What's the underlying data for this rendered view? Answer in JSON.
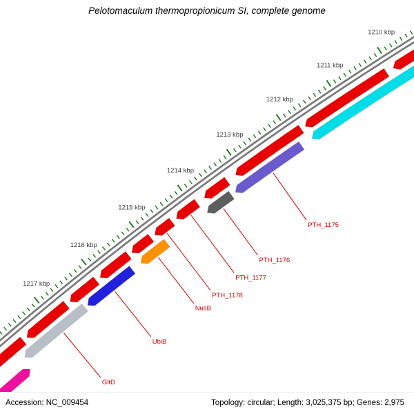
{
  "title": "Pelotomaculum thermopropionicum SI, complete genome",
  "status_bar": {
    "accession": "Accession: NC_009454",
    "summary": "Topology: circular; Length: 3,025,375 bp; Genes: 2,975"
  },
  "map": {
    "unit_suffix": " kbp",
    "tick_positions_kbp": [
      1210,
      1211,
      1212,
      1213,
      1214,
      1215,
      1216,
      1217
    ],
    "minor_tick_step_kbp": 0.1,
    "visible_range_kbp": [
      1209.3,
      1218.2
    ],
    "colors": {
      "backbone": "#7b7b7b",
      "tick": "#1e7d1e",
      "scale_text": "#3c3c3c",
      "label": "#cc0000",
      "red": "#e90000",
      "cyan": "#00dce8",
      "purple": "#6a5acd",
      "darkgray": "#5e5e5e",
      "orange": "#ff9000",
      "blue": "#2121dd",
      "silver": "#b9bfc7",
      "magenta": "#ee10a0"
    },
    "genes": [
      {
        "name": "",
        "color": "red",
        "lane": "lane1",
        "start": 1208.55,
        "end": 1209.97,
        "dir": 1
      },
      {
        "name": "",
        "color": "red",
        "lane": "lane1",
        "start": 1210.1,
        "end": 1211.72,
        "dir": 1
      },
      {
        "name": "",
        "color": "red",
        "lane": "lane1",
        "start": 1211.8,
        "end": 1213.13,
        "dir": 1
      },
      {
        "name": "",
        "color": "red",
        "lane": "lane1",
        "start": 1213.3,
        "end": 1213.77,
        "dir": 1
      },
      {
        "name": "PTH_1177",
        "color": "red",
        "lane": "lane1",
        "start": 1213.92,
        "end": 1214.35,
        "dir": 1
      },
      {
        "name": "PTH_1178",
        "color": "red",
        "lane": "lane1",
        "start": 1214.44,
        "end": 1214.8,
        "dir": 1
      },
      {
        "name": "",
        "color": "red",
        "lane": "lane1",
        "start": 1214.88,
        "end": 1215.28,
        "dir": 1
      },
      {
        "name": "",
        "color": "red",
        "lane": "lane1",
        "start": 1215.35,
        "end": 1215.95,
        "dir": 1
      },
      {
        "name": "",
        "color": "red",
        "lane": "lane1",
        "start": 1216.03,
        "end": 1216.59,
        "dir": 1
      },
      {
        "name": "",
        "color": "red",
        "lane": "lane1",
        "start": 1216.67,
        "end": 1217.52,
        "dir": 1
      },
      {
        "name": "",
        "color": "red",
        "lane": "lane1",
        "start": 1217.6,
        "end": 1218.6,
        "dir": 0
      },
      {
        "name": "",
        "color": "cyan",
        "lane": "lane2",
        "start": 1209.2,
        "end": 1211.74,
        "dir": 1
      },
      {
        "name": "PTH_1175",
        "color": "purple",
        "lane": "lane2",
        "start": 1211.95,
        "end": 1213.3,
        "dir": 1
      },
      {
        "name": "PTH_1176",
        "color": "darkgray",
        "lane": "lane2",
        "start": 1213.38,
        "end": 1213.88,
        "dir": 1
      },
      {
        "name": "NusB",
        "color": "orange",
        "lane": "lane2",
        "start": 1214.72,
        "end": 1215.27,
        "dir": 1
      },
      {
        "name": "UbiB",
        "color": "blue",
        "lane": "lane2",
        "start": 1215.45,
        "end": 1216.4,
        "dir": 1
      },
      {
        "name": "GltD",
        "color": "silver",
        "lane": "lane2",
        "start": 1216.46,
        "end": 1217.76,
        "dir": 1
      },
      {
        "name": "",
        "color": "magenta",
        "lane": "lane3",
        "start": 1217.82,
        "end": 1218.7,
        "dir": -1
      }
    ],
    "labels": [
      {
        "text": "PTH_1175",
        "p": 1212.6,
        "lane": "lane2"
      },
      {
        "text": "PTH_1176",
        "p": 1213.62,
        "lane": "lane2"
      },
      {
        "text": "PTH_1177",
        "p": 1214.12,
        "lane": "lane1"
      },
      {
        "text": "PTH_1178",
        "p": 1214.62,
        "lane": "lane1"
      },
      {
        "text": "NusB",
        "p": 1214.98,
        "lane": "lane2"
      },
      {
        "text": "UbiB",
        "p": 1215.9,
        "lane": "lane2"
      },
      {
        "text": "GltD",
        "p": 1217.0,
        "lane": "lane2"
      }
    ]
  }
}
